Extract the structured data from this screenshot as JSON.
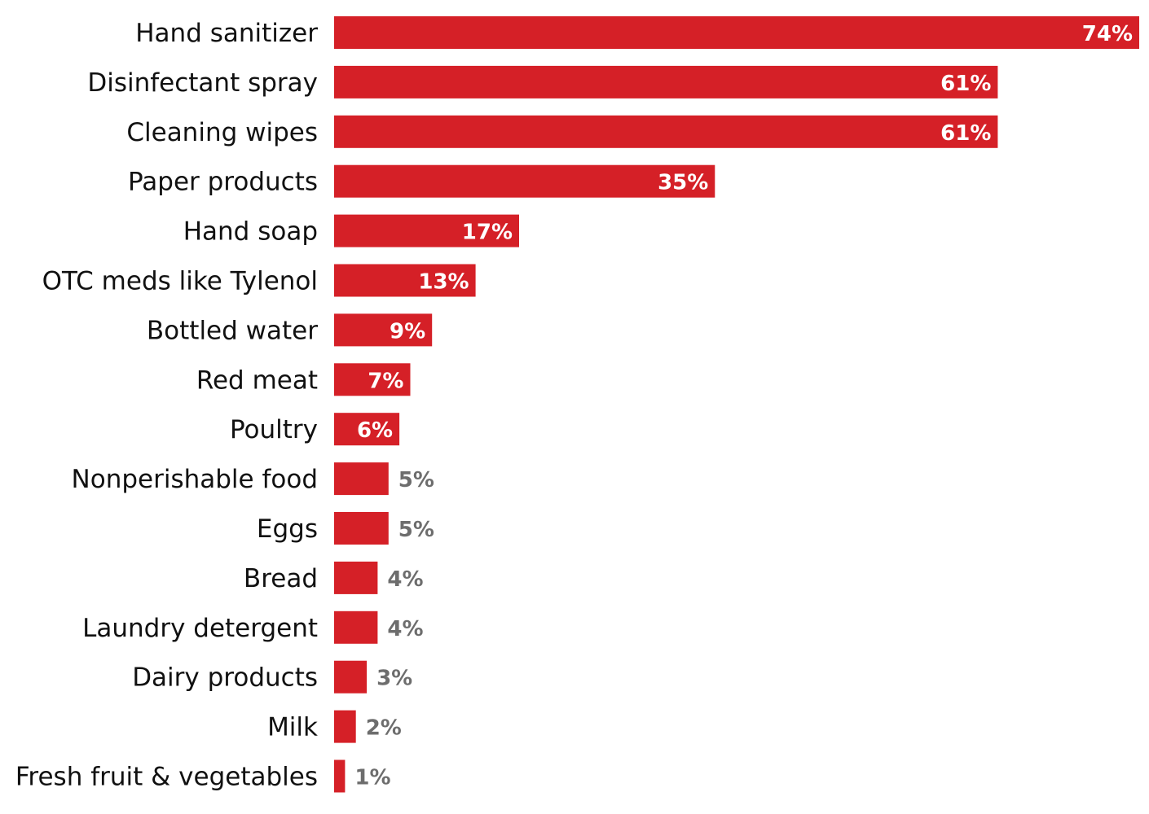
{
  "chart_data": {
    "type": "bar",
    "orientation": "horizontal",
    "title": "",
    "xlabel": "",
    "ylabel": "",
    "xlim": [
      0,
      74
    ],
    "grid": false,
    "legend": "none",
    "bar_color": "#d52027",
    "label_color_inside": "#ffffff",
    "label_color_outside": "#6d6d6d",
    "categories": [
      "Hand sanitizer",
      "Disinfectant spray",
      "Cleaning wipes",
      "Paper products",
      "Hand soap",
      "OTC meds like Tylenol",
      "Bottled water",
      "Red meat",
      "Poultry",
      "Nonperishable food",
      "Eggs",
      "Bread",
      "Laundry detergent",
      "Dairy products",
      "Milk",
      "Fresh fruit & vegetables"
    ],
    "values": [
      74,
      61,
      61,
      35,
      17,
      13,
      9,
      7,
      6,
      5,
      5,
      4,
      4,
      3,
      2,
      1
    ],
    "value_labels": [
      "74%",
      "61%",
      "61%",
      "35%",
      "17%",
      "13%",
      "9%",
      "7%",
      "6%",
      "5%",
      "5%",
      "4%",
      "4%",
      "3%",
      "2%",
      "1%"
    ]
  }
}
